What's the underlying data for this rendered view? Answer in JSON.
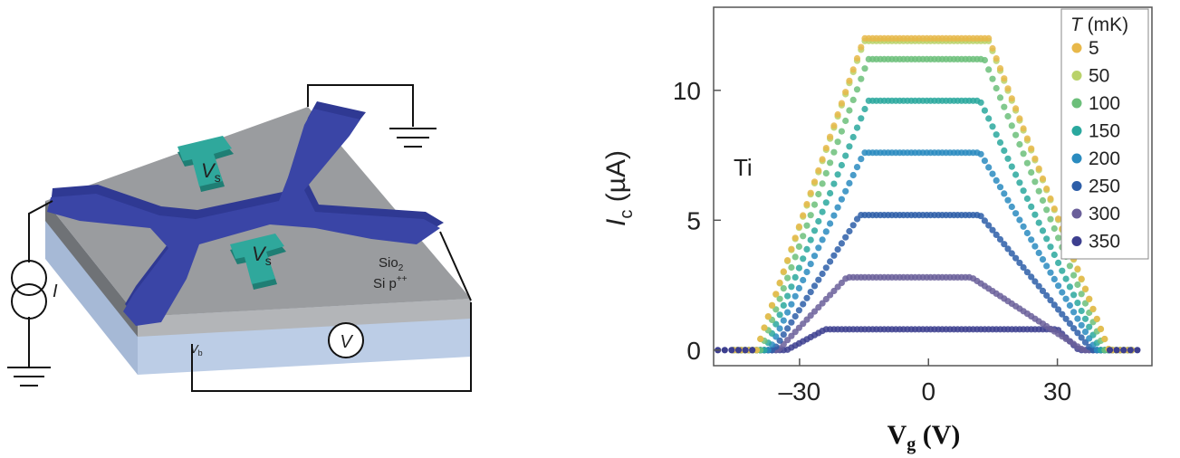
{
  "device": {
    "labels": {
      "gate_top": "V",
      "gate_top_sub": "s",
      "gate_bottom": "V",
      "gate_bottom_sub": "s",
      "oxide": "Sio",
      "oxide_sub": "2",
      "substrate": "Si p",
      "substrate_sup": "++",
      "current": "I",
      "voltmeter": "V",
      "back_gate": "V",
      "back_gate_sub": "b"
    },
    "colors": {
      "electrode": "#3a45a6",
      "gate": "#2fa89c",
      "oxide": "#9a9c9f",
      "substrate": "#b7c8e2"
    },
    "icons": [
      "ground-icon",
      "current-source-icon",
      "voltmeter-icon"
    ]
  },
  "chart_data": {
    "type": "scatter",
    "annotation": "Ti",
    "xlabel": "V",
    "xlabel_sub": "g",
    "xlabel_unit": "(V)",
    "ylabel": "I",
    "ylabel_sub": "c",
    "ylabel_unit": "(µA)",
    "xlim": [
      -50,
      52
    ],
    "ylim": [
      -0.6,
      13.2
    ],
    "xticks": [
      -30,
      0,
      30
    ],
    "xtick_labels": [
      "–30",
      "0",
      "30"
    ],
    "yticks": [
      0,
      5,
      10
    ],
    "ytick_labels": [
      "0",
      "5",
      "10"
    ],
    "legend": {
      "title": "T",
      "title_unit": "(mK)",
      "position": "top-right"
    },
    "series": [
      {
        "name": "5",
        "color": "#e8b84a",
        "plateau": 12.0,
        "outer": [
          -40,
          42
        ],
        "inner": [
          -15,
          14
        ]
      },
      {
        "name": "50",
        "color": "#b9d26a",
        "plateau": 11.9,
        "outer": [
          -40,
          42
        ],
        "inner": [
          -15,
          14
        ]
      },
      {
        "name": "100",
        "color": "#6cbf7a",
        "plateau": 11.2,
        "outer": [
          -39,
          41
        ],
        "inner": [
          -14,
          13
        ]
      },
      {
        "name": "150",
        "color": "#2aa89e",
        "plateau": 9.6,
        "outer": [
          -38,
          40
        ],
        "inner": [
          -14,
          12
        ]
      },
      {
        "name": "200",
        "color": "#2a8bbf",
        "plateau": 7.6,
        "outer": [
          -37,
          39
        ],
        "inner": [
          -15,
          12
        ]
      },
      {
        "name": "250",
        "color": "#2d5ea8",
        "plateau": 5.2,
        "outer": [
          -36,
          38
        ],
        "inner": [
          -16,
          12
        ]
      },
      {
        "name": "300",
        "color": "#6a5f9a",
        "plateau": 2.8,
        "outer": [
          -35,
          36
        ],
        "inner": [
          -19,
          10
        ]
      },
      {
        "name": "350",
        "color": "#3d3f8f",
        "plateau": 0.8,
        "outer": [
          -33,
          35
        ],
        "inner": [
          -24,
          30
        ]
      }
    ]
  }
}
